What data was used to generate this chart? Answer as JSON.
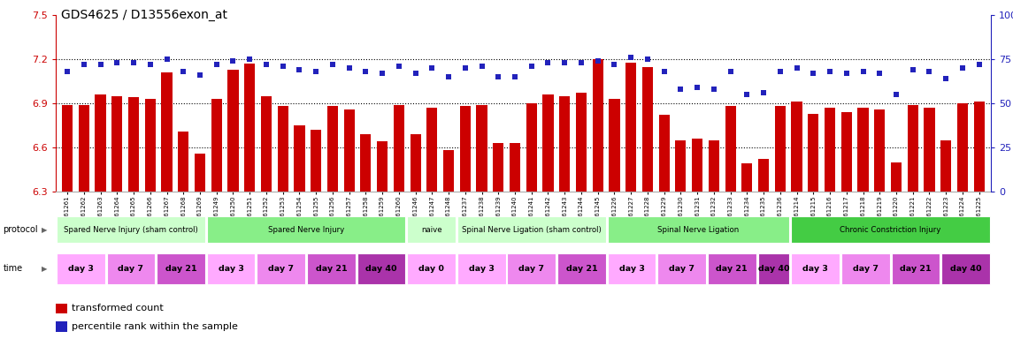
{
  "title": "GDS4625 / D13556exon_at",
  "samples": [
    "GSM761261",
    "GSM761262",
    "GSM761263",
    "GSM761264",
    "GSM761265",
    "GSM761266",
    "GSM761267",
    "GSM761268",
    "GSM761269",
    "GSM761249",
    "GSM761250",
    "GSM761251",
    "GSM761252",
    "GSM761253",
    "GSM761254",
    "GSM761255",
    "GSM761256",
    "GSM761257",
    "GSM761258",
    "GSM761259",
    "GSM761260",
    "GSM761246",
    "GSM761247",
    "GSM761248",
    "GSM761237",
    "GSM761238",
    "GSM761239",
    "GSM761240",
    "GSM761241",
    "GSM761242",
    "GSM761243",
    "GSM761244",
    "GSM761245",
    "GSM761226",
    "GSM761227",
    "GSM761228",
    "GSM761229",
    "GSM761230",
    "GSM761231",
    "GSM761232",
    "GSM761233",
    "GSM761234",
    "GSM761235",
    "GSM761236",
    "GSM761214",
    "GSM761215",
    "GSM761216",
    "GSM761217",
    "GSM761218",
    "GSM761219",
    "GSM761220",
    "GSM761221",
    "GSM761222",
    "GSM761223",
    "GSM761224",
    "GSM761225"
  ],
  "bar_values": [
    6.89,
    6.89,
    6.96,
    6.95,
    6.94,
    6.93,
    7.11,
    6.71,
    6.56,
    6.93,
    7.13,
    7.17,
    6.95,
    6.88,
    6.75,
    6.72,
    6.88,
    6.86,
    6.69,
    6.64,
    6.89,
    6.69,
    6.87,
    6.58,
    6.88,
    6.89,
    6.63,
    6.63,
    6.9,
    6.96,
    6.95,
    6.97,
    7.2,
    6.93,
    7.18,
    7.15,
    6.82,
    6.65,
    6.66,
    6.65,
    6.88,
    6.49,
    6.52,
    6.88,
    6.91,
    6.83,
    6.87,
    6.84,
    6.87,
    6.86,
    6.5,
    6.89,
    6.87,
    6.65,
    6.9,
    6.91
  ],
  "dot_values": [
    68,
    72,
    72,
    73,
    73,
    72,
    75,
    68,
    66,
    72,
    74,
    75,
    72,
    71,
    69,
    68,
    72,
    70,
    68,
    67,
    71,
    67,
    70,
    65,
    70,
    71,
    65,
    65,
    71,
    73,
    73,
    73,
    74,
    72,
    76,
    75,
    68,
    58,
    59,
    58,
    68,
    55,
    56,
    68,
    70,
    67,
    68,
    67,
    68,
    67,
    55,
    69,
    68,
    64,
    70,
    72
  ],
  "ymin": 6.3,
  "ymax": 7.5,
  "yticks_left": [
    6.3,
    6.6,
    6.9,
    7.2,
    7.5
  ],
  "yticks_right": [
    0,
    25,
    50,
    75,
    100
  ],
  "ytick_labels_right": [
    "0",
    "25",
    "50",
    "75",
    "100%"
  ],
  "hlines": [
    6.6,
    6.9,
    7.2
  ],
  "bar_color": "#cc0000",
  "dot_color": "#2222bb",
  "bg_color": "#ffffff",
  "protocols": [
    {
      "label": "Spared Nerve Injury (sham control)",
      "start": 0,
      "end": 9,
      "color": "#ccffcc"
    },
    {
      "label": "Spared Nerve Injury",
      "start": 9,
      "end": 21,
      "color": "#88ee88"
    },
    {
      "label": "naive",
      "start": 21,
      "end": 24,
      "color": "#ccffcc"
    },
    {
      "label": "Spinal Nerve Ligation (sham control)",
      "start": 24,
      "end": 33,
      "color": "#ccffcc"
    },
    {
      "label": "Spinal Nerve Ligation",
      "start": 33,
      "end": 44,
      "color": "#88ee88"
    },
    {
      "label": "Chronic Constriction Injury",
      "start": 44,
      "end": 56,
      "color": "#44cc44"
    }
  ],
  "time_groups": [
    {
      "label": "day 3",
      "start": 0,
      "end": 3,
      "color": "#ffaaff"
    },
    {
      "label": "day 7",
      "start": 3,
      "end": 6,
      "color": "#ee88ee"
    },
    {
      "label": "day 21",
      "start": 6,
      "end": 9,
      "color": "#cc55cc"
    },
    {
      "label": "day 3",
      "start": 9,
      "end": 12,
      "color": "#ffaaff"
    },
    {
      "label": "day 7",
      "start": 12,
      "end": 15,
      "color": "#ee88ee"
    },
    {
      "label": "day 21",
      "start": 15,
      "end": 18,
      "color": "#cc55cc"
    },
    {
      "label": "day 40",
      "start": 18,
      "end": 21,
      "color": "#aa33aa"
    },
    {
      "label": "day 0",
      "start": 21,
      "end": 24,
      "color": "#ffaaff"
    },
    {
      "label": "day 3",
      "start": 24,
      "end": 27,
      "color": "#ffaaff"
    },
    {
      "label": "day 7",
      "start": 27,
      "end": 30,
      "color": "#ee88ee"
    },
    {
      "label": "day 21",
      "start": 30,
      "end": 33,
      "color": "#cc55cc"
    },
    {
      "label": "day 3",
      "start": 33,
      "end": 36,
      "color": "#ffaaff"
    },
    {
      "label": "day 7",
      "start": 36,
      "end": 39,
      "color": "#ee88ee"
    },
    {
      "label": "day 21",
      "start": 39,
      "end": 42,
      "color": "#cc55cc"
    },
    {
      "label": "day 40",
      "start": 42,
      "end": 44,
      "color": "#aa33aa"
    },
    {
      "label": "day 3",
      "start": 44,
      "end": 47,
      "color": "#ffaaff"
    },
    {
      "label": "day 7",
      "start": 47,
      "end": 50,
      "color": "#ee88ee"
    },
    {
      "label": "day 21",
      "start": 50,
      "end": 53,
      "color": "#cc55cc"
    },
    {
      "label": "day 40",
      "start": 53,
      "end": 56,
      "color": "#aa33aa"
    }
  ],
  "legend": [
    {
      "label": "transformed count",
      "color": "#cc0000"
    },
    {
      "label": "percentile rank within the sample",
      "color": "#2222bb"
    }
  ]
}
